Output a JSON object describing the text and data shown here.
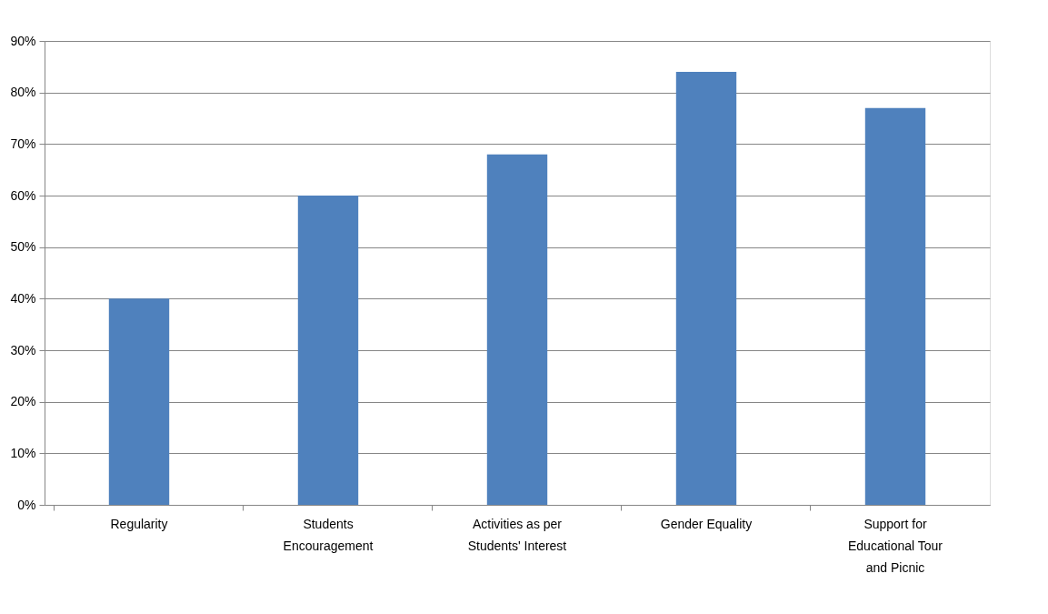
{
  "chart_data": {
    "type": "bar",
    "categories": [
      "Regularity",
      "Students Encouragement",
      "Activities as per Students' Interest",
      "Gender Equality",
      "Support for Educational Tour and Picnic"
    ],
    "values": [
      40,
      60,
      68,
      84,
      77
    ],
    "color": "#4f81bd",
    "ylim": [
      0,
      90
    ],
    "yticks": [
      {
        "value": 0,
        "label": "0%"
      },
      {
        "value": 10,
        "label": "10%"
      },
      {
        "value": 20,
        "label": "20%"
      },
      {
        "value": 30,
        "label": "30%"
      },
      {
        "value": 40,
        "label": "40%"
      },
      {
        "value": 50,
        "label": "50%"
      },
      {
        "value": 60,
        "label": "60%"
      },
      {
        "value": 70,
        "label": "70%"
      },
      {
        "value": 80,
        "label": "80%"
      },
      {
        "value": 90,
        "label": "90%"
      }
    ],
    "grid": "y"
  }
}
